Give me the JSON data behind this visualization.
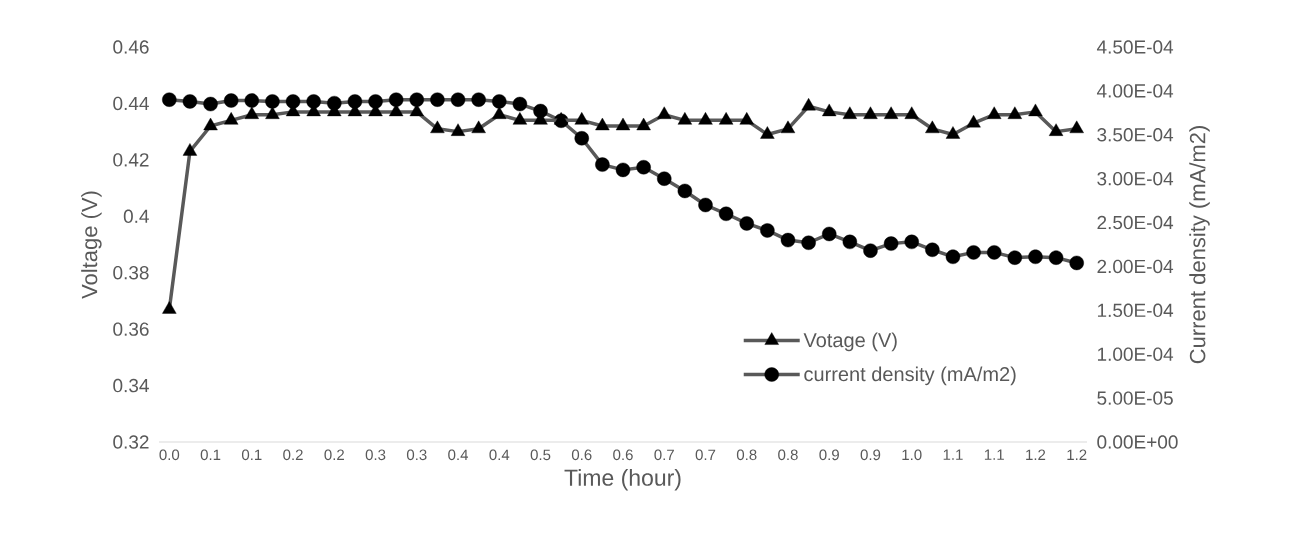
{
  "chart_data": {
    "type": "line",
    "xlabel": "Time (hour)",
    "ylabel": "Voltage (V)",
    "y2label": "Current density (mA/m2)",
    "categories": [
      "0.0",
      null,
      "0.1",
      null,
      "0.1",
      null,
      "0.2",
      null,
      "0.2",
      null,
      "0.3",
      null,
      "0.3",
      null,
      "0.4",
      null,
      "0.4",
      null,
      "0.5",
      null,
      "0.6",
      null,
      "0.6",
      null,
      "0.7",
      null,
      "0.7",
      null,
      "0.8",
      null,
      "0.8",
      null,
      "0.9",
      null,
      "0.9",
      null,
      "1.0",
      null,
      "1.1",
      null,
      "1.1",
      null,
      "1.2",
      null,
      "1.2"
    ],
    "series": [
      {
        "name": "Votage (V)",
        "color": "#595959",
        "marker": "triangle",
        "values": [
          0.367,
          0.423,
          0.432,
          0.434,
          0.436,
          0.436,
          0.437,
          0.437,
          0.437,
          0.437,
          0.437,
          0.437,
          0.437,
          0.431,
          0.43,
          0.431,
          0.436,
          0.434,
          0.434,
          0.434,
          0.434,
          0.432,
          0.432,
          0.432,
          0.436,
          0.434,
          0.434,
          0.434,
          0.434,
          0.429,
          0.431,
          0.439,
          0.437,
          0.436,
          0.436,
          0.436,
          0.436,
          0.431,
          0.429,
          0.433,
          0.436,
          0.436,
          0.437,
          0.43,
          0.431
        ]
      },
      {
        "name": "current density (mA/m2)",
        "color": "#595959",
        "marker": "circle",
        "axis": "y2",
        "values": [
          0.00039,
          0.000388,
          0.000385,
          0.000389,
          0.000389,
          0.000388,
          0.000388,
          0.000388,
          0.000386,
          0.000388,
          0.000388,
          0.00039,
          0.00039,
          0.00039,
          0.00039,
          0.00039,
          0.000388,
          0.000385,
          0.000377,
          0.000366,
          0.000346,
          0.000316,
          0.00031,
          0.000313,
          0.0003,
          0.000286,
          0.00027,
          0.00026,
          0.000249,
          0.000241,
          0.00023,
          0.000227,
          0.000237,
          0.000228,
          0.000218,
          0.000226,
          0.000228,
          0.000219,
          0.000211,
          0.000216,
          0.000216,
          0.00021,
          0.000211,
          0.00021,
          0.000204
        ]
      }
    ],
    "ylim": [
      0.32,
      0.46
    ],
    "yticks": [
      0.32,
      0.34,
      0.36,
      0.38,
      0.4,
      0.42,
      0.44,
      0.46
    ],
    "y2lim": [
      0,
      0.00045
    ],
    "y2ticks": [
      {
        "value": 0,
        "label": "0.00E+00"
      },
      {
        "value": 5e-05,
        "label": "5.00E-05"
      },
      {
        "value": 0.0001,
        "label": "1.00E-04"
      },
      {
        "value": 0.00015,
        "label": "1.50E-04"
      },
      {
        "value": 0.0002,
        "label": "2.00E-04"
      },
      {
        "value": 0.00025,
        "label": "2.50E-04"
      },
      {
        "value": 0.0003,
        "label": "3.00E-04"
      },
      {
        "value": 0.00035,
        "label": "3.50E-04"
      },
      {
        "value": 0.0004,
        "label": "4.00E-04"
      },
      {
        "value": 0.00045,
        "label": "4.50E-04"
      }
    ],
    "legend": "bottom right",
    "line_style": "solid"
  }
}
